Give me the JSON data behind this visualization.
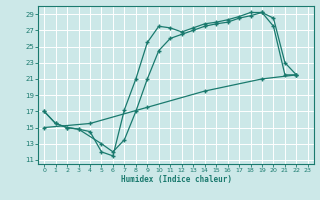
{
  "xlabel": "Humidex (Indice chaleur)",
  "bg_color": "#cce8e8",
  "grid_color": "#ffffff",
  "line_color": "#1a7a6e",
  "xlim": [
    -0.5,
    23.5
  ],
  "ylim": [
    10.5,
    30
  ],
  "xticks": [
    0,
    1,
    2,
    3,
    4,
    5,
    6,
    7,
    8,
    9,
    10,
    11,
    12,
    13,
    14,
    15,
    16,
    17,
    18,
    19,
    20,
    21,
    22,
    23
  ],
  "yticks": [
    11,
    13,
    15,
    17,
    19,
    21,
    23,
    25,
    27,
    29
  ],
  "line1_x": [
    0,
    1,
    2,
    3,
    5,
    6,
    7,
    8,
    9,
    10,
    11,
    12,
    13,
    14,
    15,
    16,
    17,
    18,
    19,
    20,
    21,
    22
  ],
  "line1_y": [
    17,
    15.5,
    15,
    14.8,
    13.0,
    12.0,
    13.5,
    17.0,
    21.0,
    24.5,
    26.0,
    26.5,
    27.0,
    27.5,
    27.8,
    28.0,
    28.5,
    28.8,
    29.2,
    28.5,
    23.0,
    21.5
  ],
  "line2_x": [
    0,
    1,
    2,
    3,
    4,
    5,
    6,
    7,
    8,
    9,
    10,
    11,
    12,
    13,
    14,
    15,
    16,
    17,
    18,
    19,
    20,
    21,
    22
  ],
  "line2_y": [
    17,
    15.5,
    15,
    14.8,
    14.5,
    12.0,
    11.5,
    17.2,
    21.0,
    25.5,
    27.5,
    27.3,
    26.8,
    27.3,
    27.8,
    28.0,
    28.3,
    28.7,
    29.2,
    29.2,
    27.5,
    21.5,
    21.5
  ],
  "line3_x": [
    0,
    4,
    9,
    14,
    19,
    22
  ],
  "line3_y": [
    15.0,
    15.5,
    17.5,
    19.5,
    21.0,
    21.5
  ]
}
